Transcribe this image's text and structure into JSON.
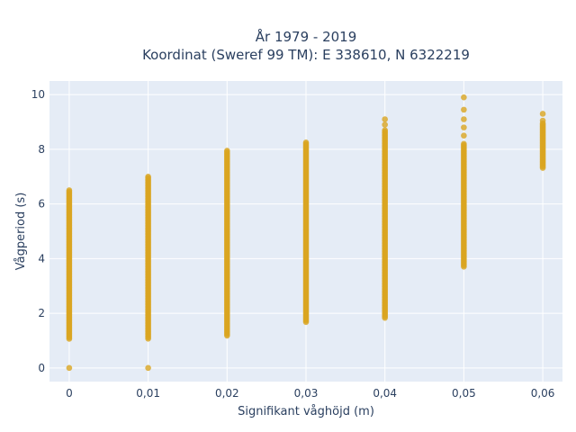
{
  "chart_data": {
    "type": "scatter",
    "title_line1": "År 1979 - 2019",
    "title_line2": "Koordinat (Sweref 99 TM): E 338610, N 6322219",
    "xlabel": "Signifikant våghöjd (m)",
    "ylabel": "Vågperiod (s)",
    "x_ticks": [
      "0",
      "0,01",
      "0,02",
      "0,03",
      "0,04",
      "0,05",
      "0,06"
    ],
    "y_ticks": [
      "0",
      "2",
      "4",
      "6",
      "8",
      "10"
    ],
    "xlim": [
      -0.0025,
      0.0625
    ],
    "ylim": [
      -0.5,
      10.5
    ],
    "grid": true,
    "marker_color": "#DAA520",
    "point_columns": [
      {
        "x": 0.0,
        "y_min": 1.05,
        "y_max": 6.45,
        "extra": [
          0.0,
          6.5
        ]
      },
      {
        "x": 0.01,
        "y_min": 1.05,
        "y_max": 7.0,
        "extra": [
          0.0
        ]
      },
      {
        "x": 0.02,
        "y_min": 1.15,
        "y_max": 7.95,
        "extra": []
      },
      {
        "x": 0.03,
        "y_min": 1.65,
        "y_max": 8.25,
        "extra": []
      },
      {
        "x": 0.04,
        "y_min": 1.8,
        "y_max": 8.7,
        "extra": [
          8.9,
          9.1
        ]
      },
      {
        "x": 0.05,
        "y_min": 3.7,
        "y_max": 8.2,
        "extra": [
          8.5,
          8.8,
          9.1,
          9.45,
          9.9
        ]
      },
      {
        "x": 0.06,
        "y_min": 7.3,
        "y_max": 8.95,
        "extra": [
          9.05,
          9.3
        ]
      }
    ]
  }
}
